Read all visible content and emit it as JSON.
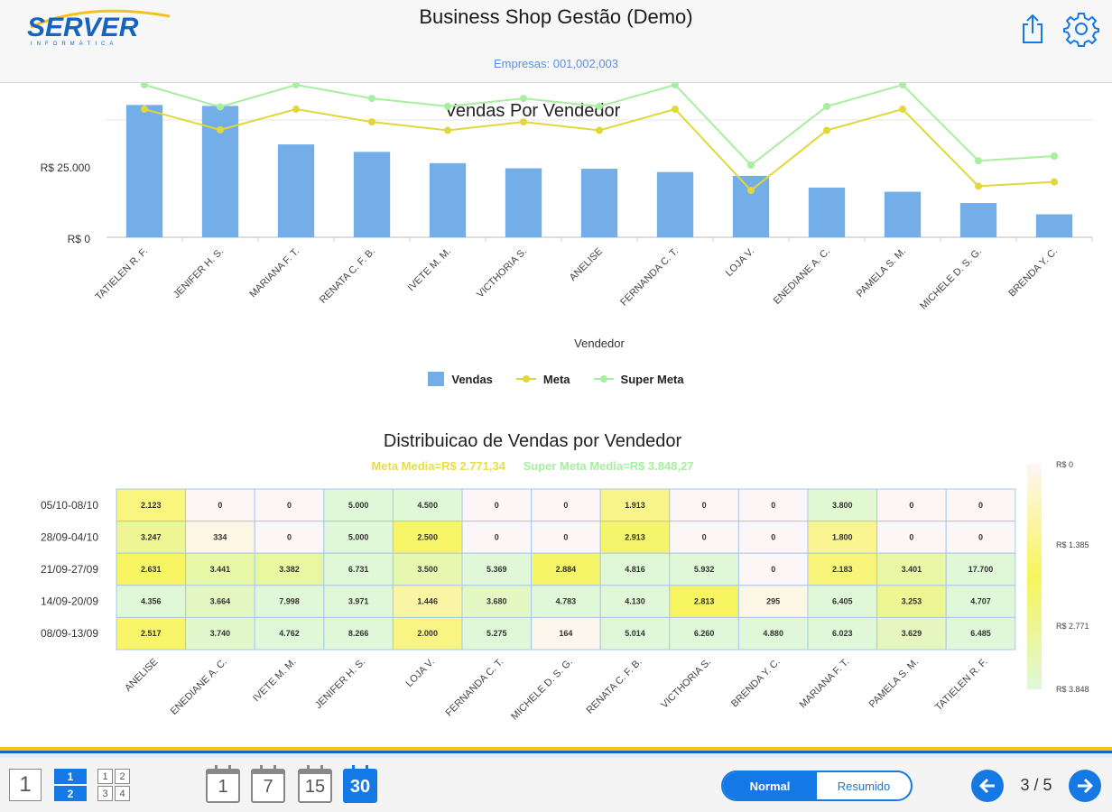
{
  "header": {
    "logo_text": "SERVER",
    "logo_sub": "INFORMÁTICA",
    "title": "Business Shop Gestão (Demo)",
    "companies": "Empresas: 001,002,003",
    "share_icon": "share-icon",
    "settings_icon": "gear-icon"
  },
  "colors": {
    "accent": "#1479e4",
    "bar": "#74aee8",
    "meta": "#e0d83a",
    "super_meta": "#a8eea0"
  },
  "bar_chart": {
    "title": "Vendas Por Vendedor",
    "xlabel": "Vendedor",
    "y_ticks": [
      "R$ 25.000",
      "R$ 0"
    ],
    "legend": [
      {
        "label": "Vendas"
      },
      {
        "label": "Meta"
      },
      {
        "label": "Super Meta"
      }
    ]
  },
  "heatmap": {
    "title": "Distribuicao de Vendas por Vendedor",
    "meta_media": "Meta Media=R$ 2.771,34",
    "super_meta_media": "Super Meta Media=R$ 3.848,27",
    "scale_labels": [
      "R$ 0",
      "R$ 1.385",
      "R$ 2.771",
      "R$ 3.848"
    ]
  },
  "chart_data": [
    {
      "type": "bar",
      "title": "Vendas Por Vendedor",
      "xlabel": "Vendedor",
      "ylabel": "",
      "ylim": [
        0,
        30000
      ],
      "categories": [
        "TATIELEN R. F.",
        "JENIFER H. S.",
        "MARIANA F. T.",
        "RENATA C. F. B.",
        "IVETE M. M.",
        "VICTHORIA S.",
        "ANELISE",
        "FERNANDA C. T.",
        "LOJA V.",
        "ENEDIANE A. C.",
        "PAMELA S. M.",
        "MICHELE D. S. G.",
        "BRENDA Y. C."
      ],
      "series": [
        {
          "name": "Vendas",
          "kind": "bar",
          "values": [
            28200,
            28000,
            19800,
            18200,
            15800,
            14700,
            14600,
            13900,
            13100,
            10600,
            9700,
            7300,
            4900
          ]
        },
        {
          "name": "Meta",
          "kind": "line",
          "values": [
            27300,
            22900,
            27300,
            24600,
            22800,
            24600,
            22800,
            27300,
            10000,
            22800,
            27300,
            10900,
            11800
          ]
        },
        {
          "name": "Super Meta",
          "kind": "line",
          "values": [
            32500,
            27800,
            32500,
            29600,
            27900,
            29600,
            27900,
            32500,
            15400,
            27900,
            32500,
            16300,
            17300
          ]
        }
      ],
      "legend_position": "bottom"
    },
    {
      "type": "heatmap",
      "title": "Distribuicao de Vendas por Vendedor",
      "rows": [
        "05/10-08/10",
        "28/09-04/10",
        "21/09-27/09",
        "14/09-20/09",
        "08/09-13/09"
      ],
      "columns": [
        "ANELISE",
        "ENEDIANE A. C.",
        "IVETE M. M.",
        "JENIFER H. S.",
        "LOJA V.",
        "FERNANDA C. T.",
        "MICHELE D. S. G.",
        "RENATA C. F. B.",
        "VICTHORIA S.",
        "BRENDA Y. C.",
        "MARIANA F. T.",
        "PAMELA S. M.",
        "TATIELEN R. F."
      ],
      "labels": [
        [
          "2.123",
          "0",
          "0",
          "5.000",
          "4.500",
          "0",
          "0",
          "1.913",
          "0",
          "0",
          "3.800",
          "0",
          "0"
        ],
        [
          "3.247",
          "334",
          "0",
          "5.000",
          "2.500",
          "0",
          "0",
          "2.913",
          "0",
          "0",
          "1.800",
          "0",
          "0"
        ],
        [
          "2.631",
          "3.441",
          "3.382",
          "6.731",
          "3.500",
          "5.369",
          "2.884",
          "4.816",
          "5.932",
          "0",
          "2.183",
          "3.401",
          "17.700"
        ],
        [
          "4.356",
          "3.664",
          "7.998",
          "3.971",
          "1.446",
          "3.680",
          "4.783",
          "4.130",
          "2.813",
          "295",
          "6.405",
          "3.253",
          "4.707"
        ],
        [
          "2.517",
          "3.740",
          "4.762",
          "8.266",
          "2.000",
          "5.275",
          "164",
          "5.014",
          "6.260",
          "4.880",
          "6.023",
          "3.629",
          "6.485"
        ]
      ],
      "values": [
        [
          2123,
          0,
          0,
          5000,
          4500,
          0,
          0,
          1913,
          0,
          0,
          3800,
          0,
          0
        ],
        [
          3247,
          334,
          0,
          5000,
          2500,
          0,
          0,
          2913,
          0,
          0,
          1800,
          0,
          0
        ],
        [
          2631,
          3441,
          3382,
          6731,
          3500,
          5369,
          2884,
          4816,
          5932,
          0,
          2183,
          3401,
          17700
        ],
        [
          4356,
          3664,
          7998,
          3971,
          1446,
          3680,
          4783,
          4130,
          2813,
          295,
          6405,
          3253,
          4707
        ],
        [
          2517,
          3740,
          4762,
          8266,
          2000,
          5275,
          164,
          5014,
          6260,
          4880,
          6023,
          3629,
          6485
        ]
      ],
      "scale": [
        0,
        1385,
        2771,
        3848
      ]
    }
  ],
  "toolbar": {
    "layout_1": "1",
    "layout_2": [
      "1",
      "2"
    ],
    "layout_4": [
      "1",
      "2",
      "3",
      "4"
    ],
    "periods": [
      "1",
      "7",
      "15",
      "30"
    ],
    "active_period": "30",
    "mode_normal": "Normal",
    "mode_resumido": "Resumido",
    "page_indicator": "3 / 5"
  }
}
